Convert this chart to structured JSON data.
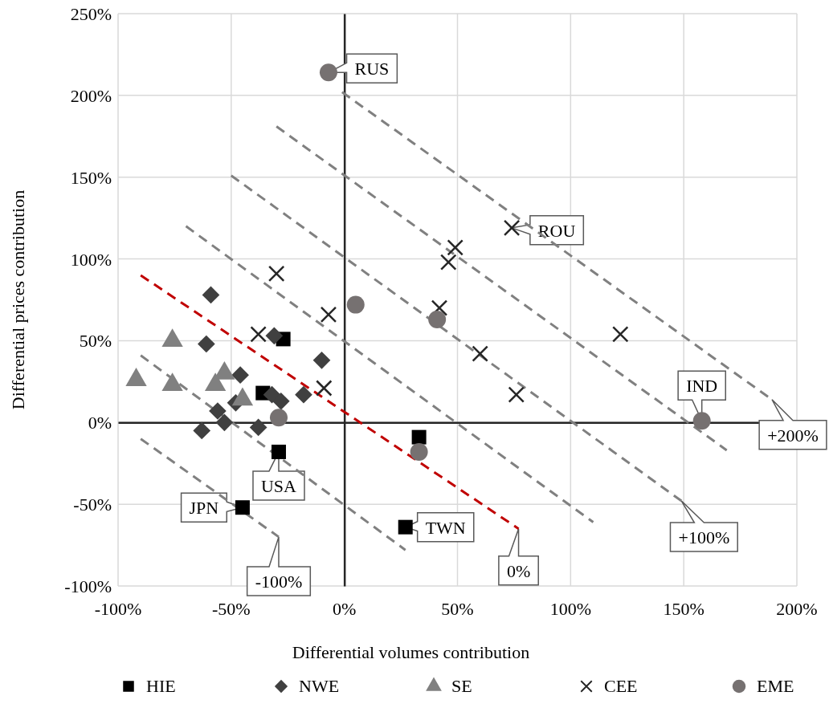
{
  "chart_data": {
    "type": "scatter",
    "xlabel": "Differential volumes contribution",
    "ylabel": "Differential prices contribution",
    "xlim": [
      -100,
      200
    ],
    "ylim": [
      -100,
      250
    ],
    "xticks": [
      {
        "value": -100,
        "label": "-100%"
      },
      {
        "value": -50,
        "label": "-50%"
      },
      {
        "value": 0,
        "label": "0%"
      },
      {
        "value": 50,
        "label": "50%"
      },
      {
        "value": 100,
        "label": "100%"
      },
      {
        "value": 150,
        "label": "150%"
      },
      {
        "value": 200,
        "label": "200%"
      }
    ],
    "yticks": [
      {
        "value": -100,
        "label": "-100%"
      },
      {
        "value": -50,
        "label": "-50%"
      },
      {
        "value": 0,
        "label": "0%"
      },
      {
        "value": 50,
        "label": "50%"
      },
      {
        "value": 100,
        "label": "100%"
      },
      {
        "value": 150,
        "label": "150%"
      },
      {
        "value": 200,
        "label": "200%"
      },
      {
        "value": 250,
        "label": "250%"
      }
    ],
    "grid": true,
    "legend": "bottom",
    "series": [
      {
        "name": "HIE",
        "color": "#000000",
        "marker": "square",
        "x": [
          -27,
          -36,
          -29,
          -45,
          33,
          27
        ],
        "values": [
          51,
          18,
          -18,
          -52,
          -9,
          -64
        ]
      },
      {
        "name": "NWE",
        "color": "#404040",
        "marker": "diamond",
        "x": [
          -59,
          -61,
          -31,
          -10,
          -46,
          -48,
          -32,
          -28,
          -18,
          -56,
          -53,
          -63,
          -38
        ],
        "values": [
          78,
          48,
          53,
          38,
          29,
          12,
          17,
          13,
          17,
          7,
          0,
          -5,
          -3
        ]
      },
      {
        "name": "SE",
        "color": "#808080",
        "marker": "triangle",
        "x": [
          -76,
          -92,
          -76,
          -53,
          -57,
          -45
        ],
        "values": [
          50,
          26,
          23,
          30,
          23,
          14
        ]
      },
      {
        "name": "CEE",
        "color": "#262626",
        "marker": "cross",
        "x": [
          -30,
          -7,
          -38,
          -9,
          74,
          49,
          46,
          42,
          122,
          60,
          76
        ],
        "values": [
          91,
          66,
          54,
          21,
          119,
          107,
          98,
          70,
          54,
          42,
          17
        ]
      },
      {
        "name": "EME",
        "color": "#767171",
        "marker": "circle",
        "x": [
          -29,
          5,
          41,
          33,
          -7,
          158
        ],
        "values": [
          3,
          72,
          63,
          -18,
          214,
          1
        ]
      },
      {
        "type": "line",
        "color": "#808080",
        "marker": "none",
        "line_style": "dashed",
        "x": [
          -90,
          -29
        ],
        "values": [
          -10,
          -70
        ]
      },
      {
        "type": "line",
        "color": "#808080",
        "marker": "none",
        "line_style": "dashed",
        "x": [
          -90,
          27
        ],
        "values": [
          41,
          -78
        ]
      },
      {
        "type": "line",
        "color": "#c00000",
        "marker": "none",
        "line_style": "dashed",
        "x": [
          -90,
          77
        ],
        "values": [
          90,
          -65
        ]
      },
      {
        "type": "line",
        "color": "#808080",
        "marker": "none",
        "line_style": "dashed",
        "x": [
          -70,
          110
        ],
        "values": [
          120,
          -61
        ]
      },
      {
        "type": "line",
        "color": "#808080",
        "marker": "none",
        "line_style": "dashed",
        "x": [
          -50,
          149
        ],
        "values": [
          151,
          -48
        ]
      },
      {
        "type": "line",
        "color": "#808080",
        "marker": "none",
        "line_style": "dashed",
        "x": [
          -30,
          169
        ],
        "values": [
          181,
          -17
        ]
      },
      {
        "type": "line",
        "color": "#808080",
        "marker": "none",
        "line_style": "dashed",
        "x": [
          -1,
          189
        ],
        "values": [
          202,
          14
        ]
      }
    ],
    "annotations": [
      {
        "text": "RUS",
        "x": -7,
        "y": 214
      },
      {
        "text": "ROU",
        "x": 74,
        "y": 119
      },
      {
        "text": "IND",
        "x": 158,
        "y": 1
      },
      {
        "text": "USA",
        "x": -29,
        "y": -18
      },
      {
        "text": "JPN",
        "x": -45,
        "y": -52
      },
      {
        "text": "TWN",
        "x": 27,
        "y": -64
      },
      {
        "text": "-100%",
        "x": -29,
        "y": -70
      },
      {
        "text": "0%",
        "x": 77,
        "y": -65
      },
      {
        "text": "+100%",
        "x": 149,
        "y": -48
      },
      {
        "text": "+200%",
        "x": 189,
        "y": 14
      }
    ]
  }
}
